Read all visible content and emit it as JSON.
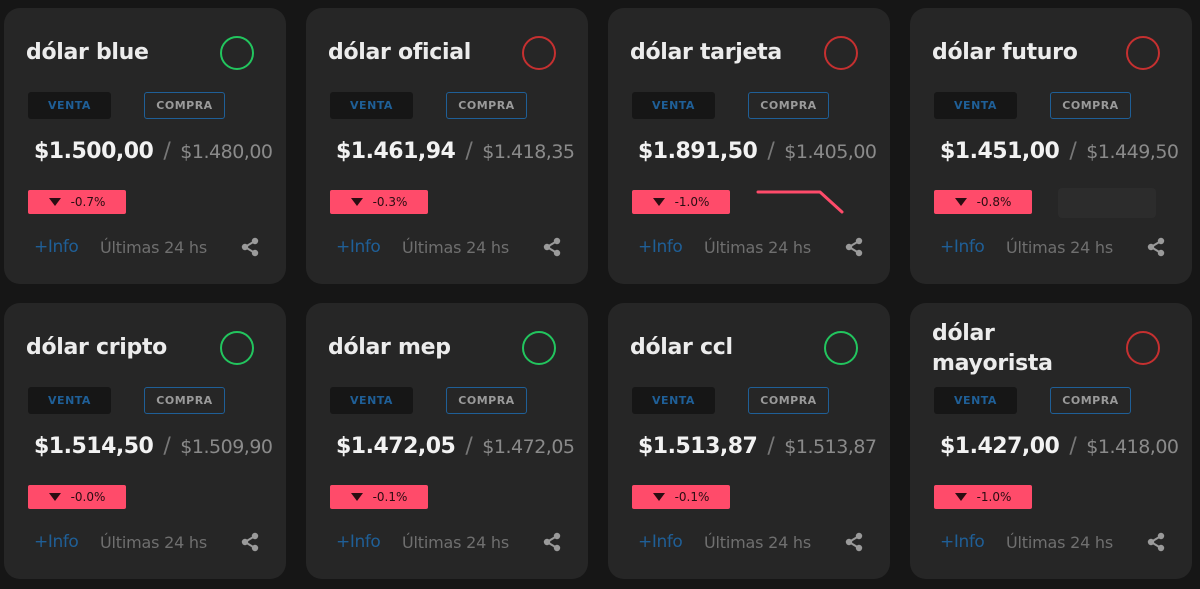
{
  "labels": {
    "venta": "VENTA",
    "compra": "COMPRA",
    "info": "+Info",
    "last24": "Últimas 24 hs"
  },
  "colors": {
    "background": "#161616",
    "card": "#262626",
    "up": "#22c55e",
    "down": "#c53030",
    "change_badge": "#ff4b6a",
    "accent_blue": "#1f5f97"
  },
  "icons": {
    "status": "status-circle-icon",
    "change": "triangle-down-icon",
    "share": "share-icon"
  },
  "cards": [
    {
      "title": "dólar blue",
      "trend": "up",
      "venta": "$1.500,00",
      "compra": "$1.480,00",
      "change": "-0.7%",
      "extra": "none"
    },
    {
      "title": "dólar oficial",
      "trend": "down",
      "venta": "$1.461,94",
      "compra": "$1.418,35",
      "change": "-0.3%",
      "extra": "none"
    },
    {
      "title": "dólar tarjeta",
      "trend": "down",
      "venta": "$1.891,50",
      "compra": "$1.405,00",
      "change": "-1.0%",
      "extra": "sparkline"
    },
    {
      "title": "dólar futuro",
      "trend": "down",
      "venta": "$1.451,00",
      "compra": "$1.449,50",
      "change": "-0.8%",
      "extra": "placeholder"
    },
    {
      "title": "dólar cripto",
      "trend": "up",
      "venta": "$1.514,50",
      "compra": "$1.509,90",
      "change": "-0.0%",
      "extra": "none"
    },
    {
      "title": "dólar mep",
      "trend": "up",
      "venta": "$1.472,05",
      "compra": "$1.472,05",
      "change": "-0.1%",
      "extra": "none"
    },
    {
      "title": "dólar ccl",
      "trend": "up",
      "venta": "$1.513,87",
      "compra": "$1.513,87",
      "change": "-0.1%",
      "extra": "none"
    },
    {
      "title": "dólar mayorista",
      "trend": "down",
      "venta": "$1.427,00",
      "compra": "$1.418,00",
      "change": "-1.0%",
      "extra": "none"
    }
  ]
}
